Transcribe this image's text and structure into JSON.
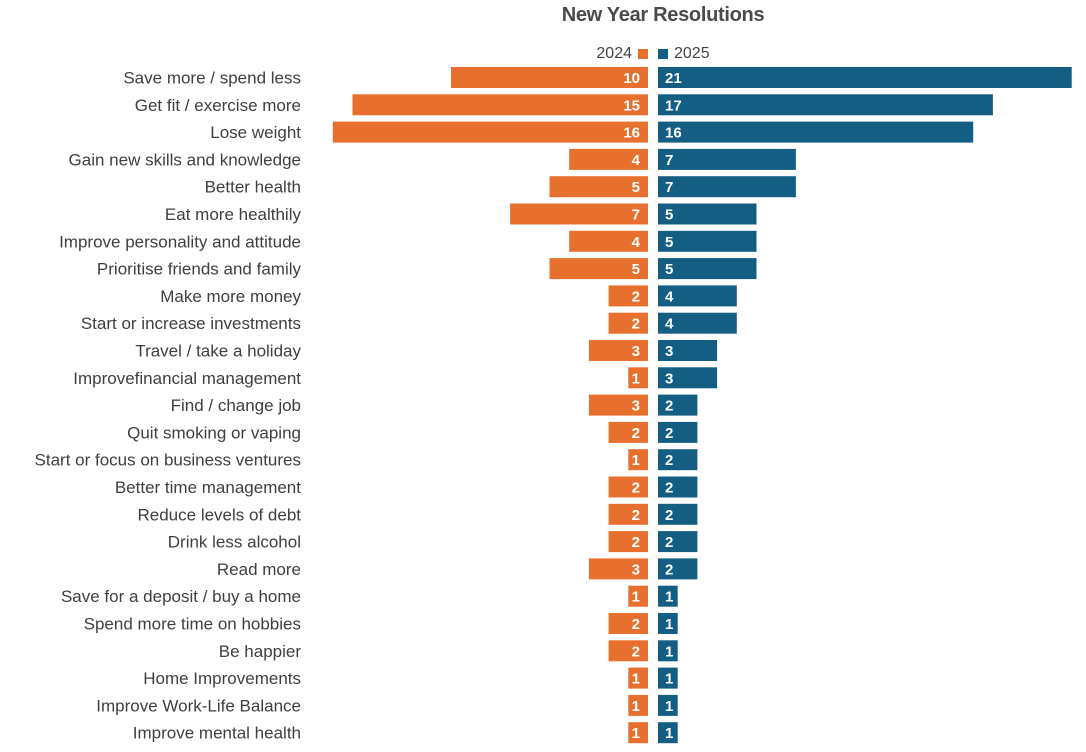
{
  "chart_data": {
    "type": "bar",
    "title": "New Year Resolutions",
    "orientation": "horizontal-diverging",
    "colors": {
      "2024": "#E8702F",
      "2025": "#145E84"
    },
    "categories": [
      "Save more / spend less",
      "Get fit / exercise more",
      "Lose weight",
      "Gain new skills and knowledge",
      "Better health",
      "Eat more healthily",
      "Improve personality and attitude",
      "Prioritise friends and family",
      "Make more money",
      "Start or increase investments",
      "Travel / take a holiday",
      "Improvefinancial management",
      "Find / change job",
      "Quit smoking or vaping",
      "Start or focus on business ventures",
      "Better time management",
      "Reduce levels of debt",
      "Drink less alcohol",
      "Read more",
      "Save for a deposit / buy a home",
      "Spend more time on hobbies",
      "Be happier",
      "Home Improvements",
      "Improve Work-Life Balance",
      "Improve mental health"
    ],
    "series": [
      {
        "name": "2024",
        "values": [
          10,
          15,
          16,
          4,
          5,
          7,
          4,
          5,
          2,
          2,
          3,
          1,
          3,
          2,
          1,
          2,
          2,
          2,
          3,
          1,
          2,
          2,
          1,
          1,
          1
        ]
      },
      {
        "name": "2025",
        "values": [
          21,
          17,
          16,
          7,
          7,
          5,
          5,
          5,
          4,
          4,
          3,
          3,
          2,
          2,
          2,
          2,
          2,
          2,
          2,
          1,
          1,
          1,
          1,
          1,
          1
        ]
      }
    ],
    "legend_position": "top-center",
    "grid": false
  }
}
